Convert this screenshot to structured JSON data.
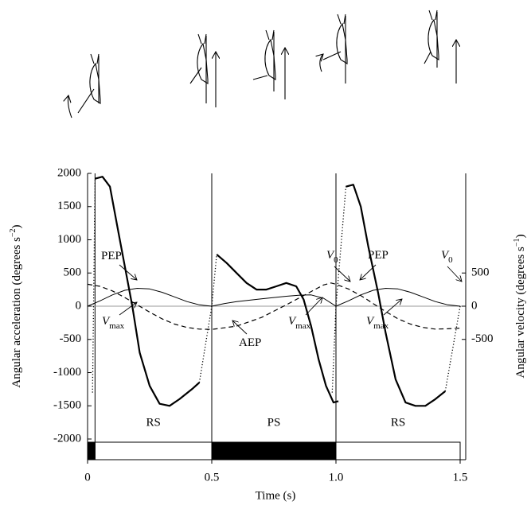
{
  "chart_data": {
    "type": "line",
    "xlabel": "Time (s)",
    "ylabel": [
      "Angular acceleration (degrees s",
      "−2",
      ")"
    ],
    "y2label": [
      "Angular velocity (degrees s",
      "−1",
      ")"
    ],
    "xlim": [
      0,
      1.5
    ],
    "xticks": [
      0,
      0.5,
      {
        "value": 1,
        "label": "1.0"
      },
      1.5
    ],
    "ylim": [
      -2000,
      2000
    ],
    "yticks": [
      -2000,
      -1500,
      -1000,
      -500,
      0,
      500,
      1000,
      1500,
      2000
    ],
    "y2lim": [
      -2000,
      2000
    ],
    "y2ticks": [
      -500,
      0,
      500
    ],
    "zero_line": true,
    "series": [
      {
        "color": "#000",
        "width": 2.2,
        "dash": "solid",
        "x": [
          0.03,
          0.06,
          0.09,
          0.12,
          0.15,
          0.18,
          0.21,
          0.25,
          0.29,
          0.33,
          0.37,
          0.42,
          0.45,
          null,
          0.52,
          0.56,
          0.6,
          0.64,
          0.68,
          0.72,
          0.76,
          0.8,
          0.84,
          0.87,
          0.9,
          0.93,
          0.96,
          0.99,
          1.01,
          null,
          1.04,
          1.07,
          1.1,
          1.13,
          1.17,
          1.2,
          1.24,
          1.28,
          1.32,
          1.36,
          1.4,
          1.44
        ],
        "values": [
          1920,
          1950,
          1800,
          1200,
          600,
          0,
          -700,
          -1200,
          -1470,
          -1500,
          -1400,
          -1250,
          -1150,
          null,
          780,
          650,
          500,
          350,
          250,
          250,
          300,
          350,
          300,
          100,
          -300,
          -800,
          -1200,
          -1450,
          -1430,
          null,
          1800,
          1830,
          1500,
          900,
          200,
          -400,
          -1100,
          -1450,
          -1500,
          -1500,
          -1400,
          -1280
        ]
      },
      {
        "color": "#000",
        "width": 1.3,
        "dash": "dotted",
        "x": [
          0.02,
          0.03,
          null,
          0.45,
          0.5,
          0.52,
          null,
          0.985,
          1,
          1.04,
          null,
          1.44,
          1.5
        ],
        "values": [
          -1300,
          1900,
          null,
          -1150,
          0,
          780,
          null,
          -1300,
          0,
          1800,
          null,
          -1280,
          0
        ]
      },
      {
        "color": "#000",
        "width": 1,
        "dash": "solid",
        "axis": "y2",
        "x": [
          0,
          0.05,
          0.1,
          0.15,
          0.2,
          0.25,
          0.3,
          0.35,
          0.4,
          0.45,
          0.5,
          0.55,
          0.6,
          0.65,
          0.7,
          0.75,
          0.8,
          0.85,
          0.9,
          0.95,
          1,
          1.05,
          1.1,
          1.15,
          1.2,
          1.25,
          1.3,
          1.35,
          1.4,
          1.45,
          1.5
        ],
        "values": [
          0,
          80,
          170,
          240,
          270,
          260,
          210,
          140,
          70,
          20,
          0,
          40,
          70,
          90,
          110,
          130,
          150,
          165,
          170,
          120,
          0,
          80,
          170,
          240,
          270,
          260,
          210,
          140,
          70,
          20,
          0
        ]
      },
      {
        "color": "#000",
        "width": 1.2,
        "dash": "dashed",
        "x": [
          0,
          0.05,
          0.1,
          0.15,
          0.2,
          0.25,
          0.3,
          0.35,
          0.4,
          0.45,
          0.5,
          0.6,
          0.7,
          0.8,
          0.9,
          0.95,
          0.98,
          1,
          1.05,
          1.1,
          1.15,
          1.2,
          1.25,
          1.3,
          1.35,
          1.4,
          1.45,
          1.5
        ],
        "values": [
          330,
          300,
          230,
          130,
          20,
          -90,
          -190,
          -270,
          -320,
          -345,
          -350,
          -300,
          -170,
          20,
          220,
          320,
          350,
          330,
          260,
          160,
          40,
          -80,
          -190,
          -270,
          -320,
          -345,
          -340,
          -330
        ]
      }
    ],
    "phases": [
      {
        "label": null,
        "start": 0,
        "end": 0.03,
        "color": "#000"
      },
      {
        "label": "RS",
        "start": 0.03,
        "end": 0.5,
        "color": "#fff"
      },
      {
        "label": "PS",
        "start": 0.5,
        "end": 1,
        "color": "#000"
      },
      {
        "label": "RS",
        "start": 1,
        "end": 1.5,
        "color": "#fff"
      }
    ],
    "annotations": [
      {
        "text": "PEP"
      },
      {
        "text": "V",
        "sub": "0"
      },
      {
        "text": "PEP"
      },
      {
        "text": "V",
        "sub": "0"
      },
      {
        "text": "V",
        "sub": "max"
      },
      {
        "text": "AEP"
      },
      {
        "text": "V",
        "sub": "max"
      },
      {
        "text": "V",
        "sub": "max"
      }
    ]
  }
}
